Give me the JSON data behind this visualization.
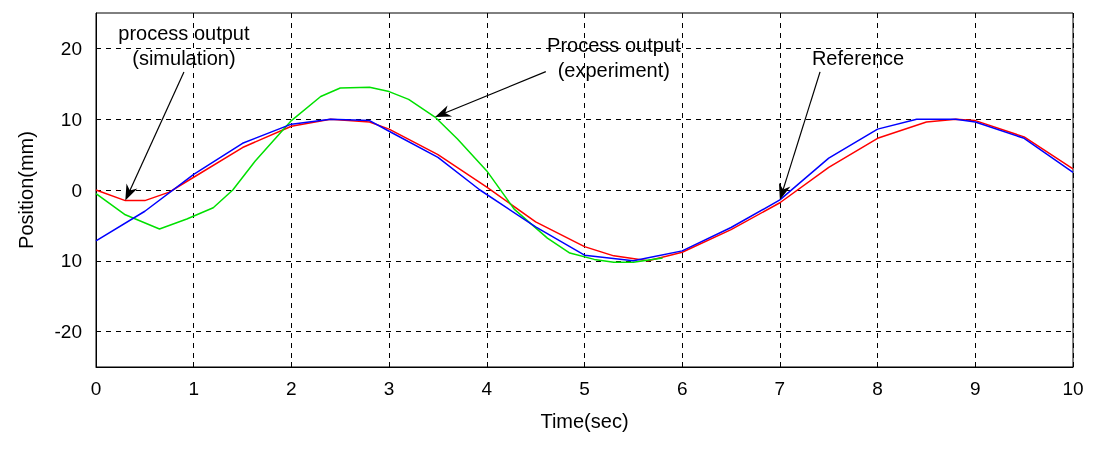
{
  "chart_data": {
    "type": "line",
    "xlabel": "Time(sec)",
    "ylabel": "Position(mm)",
    "xlim": [
      0,
      10
    ],
    "xticks": [
      0,
      1,
      2,
      3,
      4,
      5,
      6,
      7,
      8,
      9,
      10
    ],
    "ylim": [
      -25,
      25
    ],
    "yticks": [
      -20,
      {
        "value": -10,
        "label": "10"
      },
      0,
      10,
      20
    ],
    "grid": true,
    "marker": "none",
    "line_style": "solid",
    "series": [
      {
        "color": "#ff0000",
        "x": [
          0,
          0.3,
          0.5,
          0.75,
          1,
          1.5,
          2,
          2.4,
          2.8,
          3,
          3.5,
          4,
          4.5,
          5,
          5.3,
          5.65,
          6,
          6.5,
          7,
          7.5,
          8,
          8.5,
          8.8,
          9,
          9.5,
          10
        ],
        "values": [
          0,
          -1.5,
          -1.5,
          -0.3,
          1.8,
          6.0,
          9.0,
          10,
          9.6,
          8.6,
          5.0,
          0.4,
          -4.5,
          -8.0,
          -9.3,
          -10,
          -8.8,
          -5.6,
          -1.8,
          3.2,
          7.3,
          9.6,
          10,
          9.8,
          7.5,
          3.0
        ]
      },
      {
        "color": "#00e000",
        "x": [
          0,
          0.3,
          0.65,
          0.93,
          1.2,
          1.4,
          1.63,
          2,
          2.3,
          2.5,
          2.8,
          3,
          3.2,
          3.47,
          3.7,
          4,
          4.28,
          4.62,
          4.85,
          5.1,
          5.3,
          5.5,
          5.8
        ],
        "values": [
          -0.5,
          -3.5,
          -5.5,
          -4.1,
          -2.5,
          0,
          4.1,
          9.8,
          13.2,
          14.4,
          14.5,
          13.9,
          12.8,
          10.3,
          7.2,
          2.7,
          -2.7,
          -6.8,
          -8.9,
          -9.8,
          -10.2,
          -10.2,
          -9.6
        ]
      },
      {
        "color": "#0000ff",
        "x": [
          0,
          0.5,
          1,
          1.5,
          2,
          2.4,
          2.8,
          3,
          3.5,
          3.93,
          4.5,
          5,
          5.5,
          6,
          6.5,
          7,
          7.5,
          8,
          8.4,
          8.8,
          9,
          9.5,
          10
        ],
        "values": [
          -7.2,
          -3.0,
          2.2,
          6.6,
          9.3,
          10,
          9.8,
          8.3,
          4.6,
          0,
          -5.2,
          -9.2,
          -10,
          -8.6,
          -5.3,
          -1.4,
          4.5,
          8.6,
          10,
          10,
          9.6,
          7.3,
          2.5
        ]
      }
    ],
    "annotations": [
      "process output\n(simulation)",
      "Process output\n(experiment)",
      "Reference"
    ]
  }
}
